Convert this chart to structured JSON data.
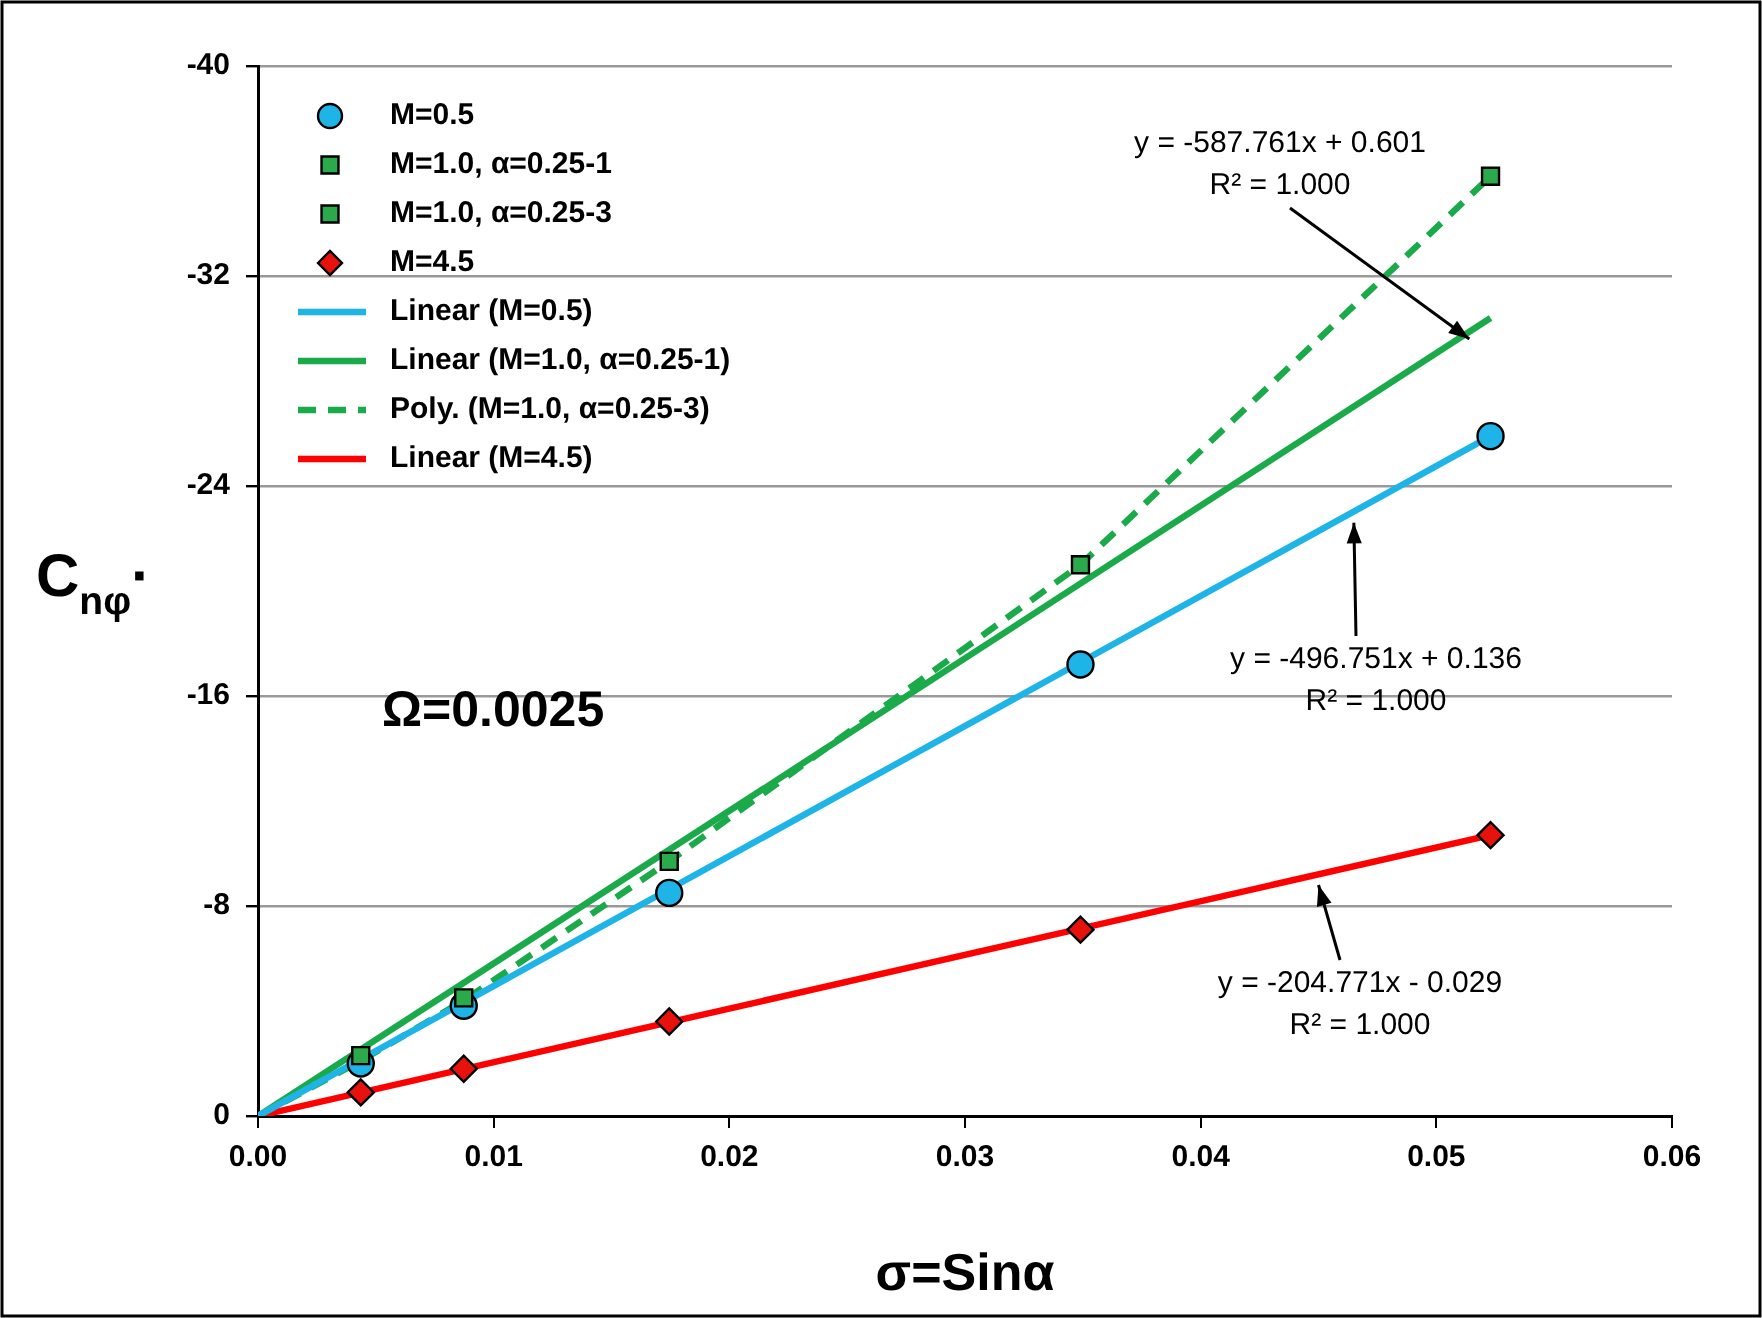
{
  "chart_data": {
    "type": "scatter",
    "xlabel": "σ=Sinα",
    "ylabel": "C$_{nφ}$·",
    "xlim": [
      0,
      0.06
    ],
    "xticks": [
      {
        "value": 0,
        "label": "0.00"
      },
      {
        "value": 0.01,
        "label": "0.01"
      },
      {
        "value": 0.02,
        "label": "0.02"
      },
      {
        "value": 0.03,
        "label": "0.03"
      },
      {
        "value": 0.04,
        "label": "0.04"
      },
      {
        "value": 0.05,
        "label": "0.05"
      },
      {
        "value": 0.06,
        "label": "0.06"
      }
    ],
    "ylim": [
      0,
      -40
    ],
    "yticks": [
      0,
      -8,
      -16,
      -24,
      -32,
      -40
    ],
    "grid": "y",
    "legend": "top left",
    "series": [
      {
        "name": "M=0.5",
        "type": "scatter",
        "marker": "circle",
        "color": "#1fb4e8",
        "x": [
          0.00436,
          0.00873,
          0.01745,
          0.0349,
          0.0523
        ],
        "values": [
          -2.0,
          -4.2,
          -8.5,
          -17.2,
          -25.9
        ]
      },
      {
        "name": "M=1.0, α=0.25-1",
        "type": "scatter",
        "marker": "square",
        "color": "#2aaa4a",
        "x": [
          0.00436,
          0.00873,
          0.01745
        ],
        "values": [
          -2.3,
          -4.5,
          -9.7
        ]
      },
      {
        "name": "M=1.0, α=0.25-3",
        "type": "scatter",
        "marker": "square",
        "color": "#2aaa4a",
        "x": [
          0.0349,
          0.0523
        ],
        "values": [
          -21.0,
          -35.8
        ]
      },
      {
        "name": "M=4.5",
        "type": "scatter",
        "marker": "diamond",
        "color": "#e8120c",
        "x": [
          0.00436,
          0.00873,
          0.01745,
          0.0349,
          0.0523
        ],
        "values": [
          -0.9,
          -1.8,
          -3.6,
          -7.1,
          -10.7
        ]
      },
      {
        "name": "Linear (M=0.5)",
        "type": "line",
        "marker": "none",
        "line_style": "solid",
        "color": "#1fb4e8",
        "x": [
          0,
          0.0523
        ],
        "values": [
          0,
          -25.9
        ]
      },
      {
        "name": "Linear (M=1.0, α=0.25-1)",
        "type": "line",
        "marker": "none",
        "line_style": "solid",
        "color": "#1aaa4a",
        "x": [
          0,
          0.0523
        ],
        "values": [
          0,
          -30.4
        ]
      },
      {
        "name": "Poly. (M=1.0, α=0.25-3)",
        "type": "line",
        "marker": "none",
        "line_style": "dashed",
        "color": "#1aaa4a",
        "x": [
          0,
          0.00436,
          0.00873,
          0.01745,
          0.0349,
          0.0523
        ],
        "values": [
          0,
          -2.1,
          -4.4,
          -9.7,
          -21.0,
          -35.8
        ]
      },
      {
        "name": "Linear (M=4.5)",
        "type": "line",
        "marker": "none",
        "line_style": "solid",
        "color": "#ff0000",
        "x": [
          0,
          0.0523
        ],
        "values": [
          0,
          -10.7
        ]
      }
    ],
    "annotations": [
      {
        "text": "y = -587.761x + 0.601\nR² = 1.000",
        "x": 0.0514,
        "y": -29.6
      },
      {
        "text": "y = -496.751x + 0.136\nR² = 1.000",
        "x": 0.0465,
        "y": -22.6
      },
      {
        "text": "y = -204.771x - 0.029\nR² = 1.000",
        "x": 0.045,
        "y": -8.8
      },
      "Ω=0.0025"
    ]
  }
}
